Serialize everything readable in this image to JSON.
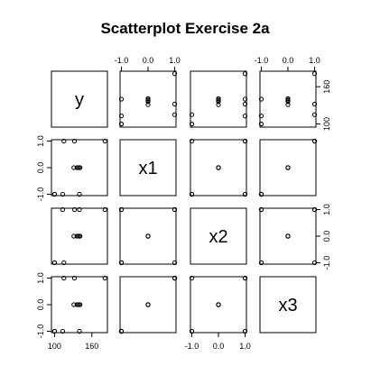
{
  "chart_data": {
    "type": "scatter",
    "title": "Scatterplot Exercise 2a",
    "variables": [
      "y",
      "x1",
      "x2",
      "x3"
    ],
    "ranges": {
      "y": [
        95,
        185
      ],
      "x1": [
        -1.05,
        1.05
      ],
      "x2": [
        -1.05,
        1.05
      ],
      "x3": [
        -1.05,
        1.05
      ]
    },
    "ticks": {
      "y": [
        100,
        160
      ],
      "x1": [
        -1.0,
        0.0,
        1.0
      ],
      "x2": [
        -1.0,
        0.0,
        1.0
      ],
      "x3": [
        -1.0,
        0.0,
        1.0
      ]
    },
    "tick_labels": {
      "y": [
        "100",
        "160"
      ],
      "x1": [
        "-1.0",
        "0.0",
        "1.0"
      ],
      "x2": [
        "-1.0",
        "0.0",
        "1.0"
      ],
      "x3": [
        "-1.0",
        "0.0",
        "1.0"
      ]
    },
    "data": {
      "y": [
        181,
        100,
        113,
        115,
        132,
        140,
        141,
        136,
        138,
        131,
        140,
        100
      ],
      "x1": [
        1,
        -1,
        -1,
        1,
        1,
        0,
        0,
        0,
        0,
        0,
        -1,
        -1
      ],
      "x2": [
        1,
        -1,
        1,
        -1,
        1,
        0,
        0,
        0,
        0,
        0,
        1,
        -1
      ],
      "x3": [
        1,
        -1,
        -1,
        1,
        1,
        0,
        0,
        0,
        0,
        0,
        -1,
        -1
      ]
    },
    "grid": false,
    "legend": "none"
  }
}
